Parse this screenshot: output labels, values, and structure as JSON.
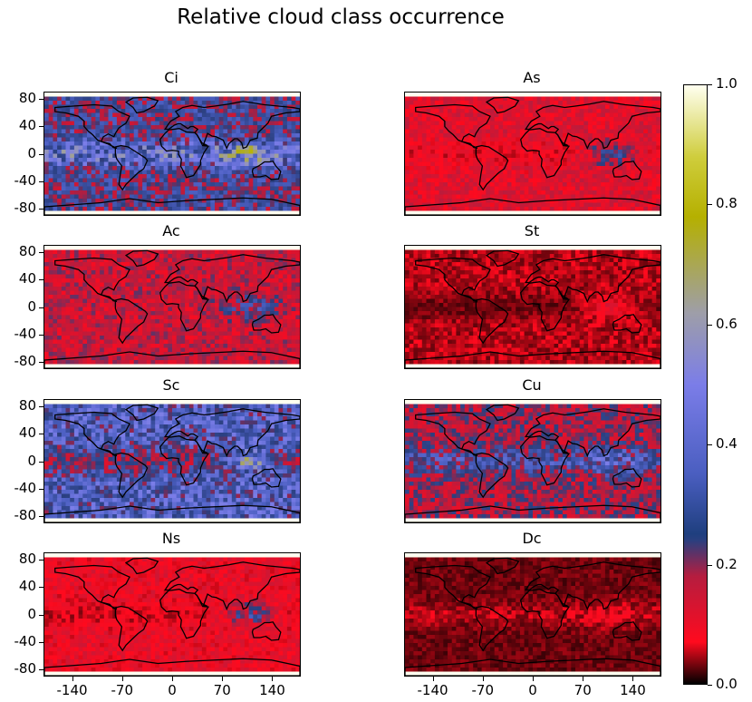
{
  "figure": {
    "title": "Relative cloud class occurrence"
  },
  "chart_data": {
    "type": "heatmap",
    "title": "Relative cloud class occurrence",
    "layout": "4 rows x 2 columns of global maps",
    "xticks": [
      -140,
      -70,
      0,
      70,
      140
    ],
    "yticks": [
      80,
      40,
      0,
      -40,
      -80
    ],
    "xlim": [
      -180,
      180
    ],
    "ylim": [
      -90,
      90
    ],
    "colorbar": {
      "range": [
        0.0,
        1.0
      ],
      "ticks": [
        "0.0",
        "0.2",
        "0.4",
        "0.6",
        "0.8",
        "1.0"
      ],
      "colors": [
        "#000000",
        "#ff0a1e",
        "#b51d3f",
        "#2a3f7f",
        "#4a5ec0",
        "#7b7de8",
        "#9e9ea8",
        "#b5b000",
        "#cfcd3c",
        "#fffff0"
      ]
    },
    "panels": [
      {
        "name": "Ci",
        "mean_level": 0.25,
        "tropics_level": 0.45,
        "hotspot_level": 0.6,
        "pattern": "high in tropics, peaks over tropical western Pacific / Indian Ocean"
      },
      {
        "name": "As",
        "mean_level": 0.12,
        "tropics_level": 0.08,
        "hotspot_level": 0.3,
        "pattern": "higher at mid/high latitudes"
      },
      {
        "name": "Ac",
        "mean_level": 0.15,
        "tropics_level": 0.15,
        "hotspot_level": 0.3,
        "pattern": "moderate, higher over land"
      },
      {
        "name": "St",
        "mean_level": 0.05,
        "tropics_level": 0.03,
        "hotspot_level": 0.12,
        "pattern": "low everywhere"
      },
      {
        "name": "Sc",
        "mean_level": 0.35,
        "tropics_level": 0.2,
        "hotspot_level": 0.6,
        "pattern": "high over oceans, peaks in eastern subtropical basins"
      },
      {
        "name": "Cu",
        "mean_level": 0.18,
        "tropics_level": 0.3,
        "hotspot_level": 0.4,
        "pattern": "higher over tropical oceans"
      },
      {
        "name": "Ns",
        "mean_level": 0.1,
        "tropics_level": 0.06,
        "hotspot_level": 0.3,
        "pattern": "higher at high latitudes"
      },
      {
        "name": "Dc",
        "mean_level": 0.03,
        "tropics_level": 0.05,
        "hotspot_level": 0.08,
        "pattern": "very low everywhere"
      }
    ]
  }
}
